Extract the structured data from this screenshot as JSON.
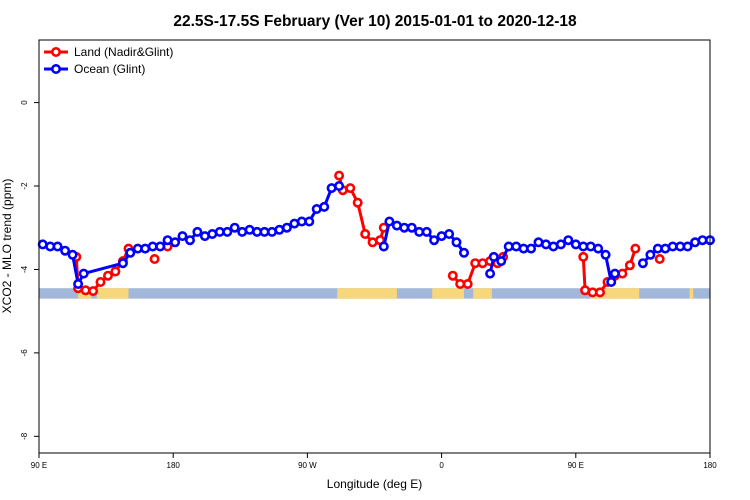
{
  "chart_data": {
    "type": "line",
    "title": "22.5S-17.5S February (Ver 10)   2015-01-01 to 2020-12-18",
    "xlabel": "Longitude (deg E)",
    "ylabel": "XCO2 - MLO trend (ppm)",
    "xlim": [
      90,
      450
    ],
    "ylim": [
      -8.4,
      1.5
    ],
    "x_ticks": [
      {
        "value": 90,
        "label": "90 E"
      },
      {
        "value": 162,
        "label": "180"
      },
      {
        "value": 234,
        "label": "90 W"
      },
      {
        "value": 306,
        "label": "0"
      },
      {
        "value": 378,
        "label": "90 E"
      },
      {
        "value": 450,
        "label": "180"
      }
    ],
    "y_ticks": [
      {
        "value": 0,
        "label": "0"
      },
      {
        "value": -2,
        "label": "-2"
      },
      {
        "value": -4,
        "label": "-4"
      },
      {
        "value": -6,
        "label": "-6"
      },
      {
        "value": -8,
        "label": "-8"
      }
    ],
    "legend_position": "top-left",
    "land_mask": {
      "y_range": [
        -4.7,
        -4.45
      ],
      "ocean_color": "#a3b8d9",
      "land_color": "#f7d77b",
      "land_segments": [
        [
          111,
          118
        ],
        [
          121,
          138
        ],
        [
          250,
          282
        ],
        [
          301,
          318
        ],
        [
          323,
          333
        ],
        [
          386,
          412
        ],
        [
          439,
          441
        ]
      ]
    },
    "series": [
      {
        "name": "Land (Nadir&Glint)",
        "color": "#ff0000",
        "segments": [
          [
            [
              110,
              -3.7
            ],
            [
              111,
              -4.45
            ],
            [
              115,
              -4.5
            ],
            [
              119,
              -4.52
            ],
            [
              123,
              -4.3
            ],
            [
              127,
              -4.15
            ],
            [
              131,
              -4.05
            ],
            [
              135,
              -3.8
            ],
            [
              138,
              -3.5
            ]
          ],
          [
            [
              152,
              -3.75
            ]
          ],
          [
            [
              159,
              -3.45
            ]
          ],
          [
            [
              251,
              -1.75
            ],
            [
              253,
              -2.1
            ],
            [
              257,
              -2.05
            ],
            [
              261,
              -2.4
            ],
            [
              265,
              -3.15
            ],
            [
              269,
              -3.35
            ],
            [
              273,
              -3.3
            ],
            [
              275,
              -3.0
            ]
          ],
          [
            [
              312,
              -4.15
            ],
            [
              316,
              -4.35
            ],
            [
              320,
              -4.35
            ],
            [
              324,
              -3.85
            ],
            [
              328,
              -3.85
            ],
            [
              332,
              -3.8
            ],
            [
              336,
              -3.85
            ],
            [
              339,
              -3.7
            ]
          ],
          [
            [
              382,
              -3.7
            ],
            [
              383,
              -4.5
            ],
            [
              387,
              -4.55
            ],
            [
              391,
              -4.55
            ],
            [
              395,
              -4.3
            ],
            [
              399,
              -4.15
            ],
            [
              403,
              -4.1
            ],
            [
              407,
              -3.9
            ],
            [
              410,
              -3.5
            ]
          ],
          [
            [
              423,
              -3.75
            ]
          ]
        ]
      },
      {
        "name": "Ocean (Glint)",
        "color": "#0000ff",
        "segments": [
          [
            [
              92,
              -3.4
            ],
            [
              96,
              -3.45
            ],
            [
              100,
              -3.45
            ],
            [
              104,
              -3.55
            ],
            [
              108,
              -3.65
            ],
            [
              111,
              -4.35
            ],
            [
              114,
              -4.1
            ],
            [
              135,
              -3.85
            ],
            [
              139,
              -3.6
            ],
            [
              143,
              -3.5
            ],
            [
              147,
              -3.5
            ],
            [
              151,
              -3.45
            ],
            [
              155,
              -3.45
            ],
            [
              159,
              -3.3
            ],
            [
              163,
              -3.35
            ],
            [
              167,
              -3.2
            ],
            [
              171,
              -3.3
            ],
            [
              175,
              -3.1
            ],
            [
              179,
              -3.2
            ],
            [
              183,
              -3.15
            ],
            [
              187,
              -3.1
            ],
            [
              191,
              -3.1
            ],
            [
              195,
              -3.0
            ],
            [
              199,
              -3.1
            ],
            [
              203,
              -3.05
            ],
            [
              207,
              -3.1
            ],
            [
              211,
              -3.1
            ],
            [
              215,
              -3.1
            ],
            [
              219,
              -3.05
            ],
            [
              223,
              -3.0
            ],
            [
              227,
              -2.9
            ],
            [
              231,
              -2.85
            ],
            [
              235,
              -2.85
            ],
            [
              239,
              -2.55
            ],
            [
              243,
              -2.5
            ],
            [
              247,
              -2.05
            ],
            [
              251,
              -2.0
            ]
          ],
          [
            [
              275,
              -3.45
            ],
            [
              278,
              -2.85
            ],
            [
              282,
              -2.95
            ],
            [
              286,
              -3.0
            ],
            [
              290,
              -3.0
            ],
            [
              294,
              -3.1
            ],
            [
              298,
              -3.1
            ],
            [
              302,
              -3.3
            ],
            [
              306,
              -3.2
            ],
            [
              310,
              -3.15
            ],
            [
              314,
              -3.35
            ],
            [
              318,
              -3.6
            ]
          ],
          [
            [
              332,
              -4.1
            ],
            [
              334,
              -3.7
            ],
            [
              338,
              -3.8
            ],
            [
              342,
              -3.45
            ],
            [
              346,
              -3.45
            ],
            [
              350,
              -3.5
            ],
            [
              354,
              -3.5
            ],
            [
              358,
              -3.35
            ],
            [
              362,
              -3.4
            ],
            [
              366,
              -3.45
            ],
            [
              370,
              -3.4
            ],
            [
              374,
              -3.3
            ],
            [
              378,
              -3.4
            ],
            [
              382,
              -3.45
            ],
            [
              386,
              -3.45
            ],
            [
              390,
              -3.5
            ],
            [
              394,
              -3.65
            ],
            [
              397,
              -4.3
            ],
            [
              399,
              -4.1
            ]
          ],
          [
            [
              414,
              -3.85
            ],
            [
              418,
              -3.65
            ],
            [
              422,
              -3.5
            ],
            [
              426,
              -3.5
            ],
            [
              430,
              -3.45
            ],
            [
              434,
              -3.45
            ],
            [
              438,
              -3.45
            ],
            [
              442,
              -3.35
            ],
            [
              446,
              -3.3
            ],
            [
              450,
              -3.3
            ]
          ]
        ]
      }
    ]
  }
}
